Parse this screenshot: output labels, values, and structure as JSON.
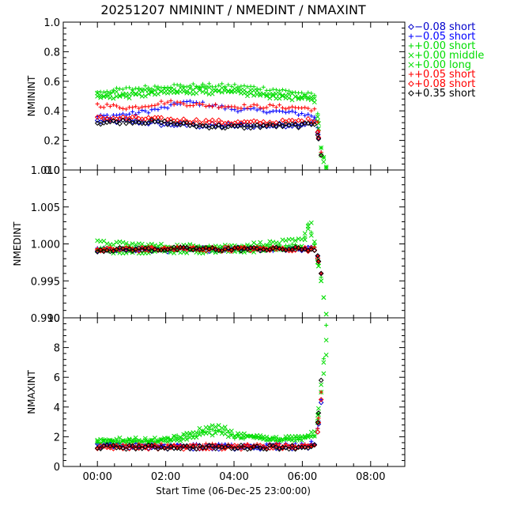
{
  "chart_data": {
    "type": "scatter",
    "title": "20251207 NMININT / NMEDINT / NMAXINT",
    "xlabel": "Start Time (06-Dec-25 23:00:00)",
    "x_ticks": [
      "00:00",
      "02:00",
      "04:00",
      "06:00",
      "08:00"
    ],
    "x_tick_hours": [
      0,
      2,
      4,
      6,
      8
    ],
    "xlim_hours": [
      -1,
      9
    ],
    "legend_position": "right",
    "legend": [
      {
        "symbol": "diamond",
        "offset": "−0.08",
        "type": "short",
        "color": "#0000cc"
      },
      {
        "symbol": "plus",
        "offset": "−0.05",
        "type": "short",
        "color": "#0000ff"
      },
      {
        "symbol": "plus",
        "offset": "+0.00",
        "type": "short",
        "color": "#00dd00"
      },
      {
        "symbol": "cross",
        "offset": "+0.00",
        "type": "middle",
        "color": "#00dd00"
      },
      {
        "symbol": "cross",
        "offset": "+0.00",
        "type": "long",
        "color": "#00dd00"
      },
      {
        "symbol": "plus",
        "offset": "+0.05",
        "type": "short",
        "color": "#ff0000"
      },
      {
        "symbol": "diamond",
        "offset": "+0.08",
        "type": "short",
        "color": "#ff0000"
      },
      {
        "symbol": "diamond",
        "offset": "+0.35",
        "type": "short",
        "color": "#000000"
      }
    ],
    "panels": [
      {
        "ylabel": "NMININT",
        "ylim": [
          0.0,
          1.0
        ],
        "y_ticks": [
          "0.0",
          "0.2",
          "0.4",
          "0.6",
          "0.8",
          "1.0"
        ],
        "y_tick_values": [
          0.0,
          0.2,
          0.4,
          0.6,
          0.8,
          1.0
        ],
        "series": [
          {
            "legend_index": 0,
            "x": [
              0.0,
              1.0,
              2.0,
              3.0,
              4.0,
              5.0,
              6.0,
              6.4,
              6.55
            ],
            "y": [
              0.33,
              0.33,
              0.31,
              0.3,
              0.3,
              0.3,
              0.31,
              0.33,
              0.1
            ]
          },
          {
            "legend_index": 1,
            "x": [
              0.0,
              1.0,
              2.0,
              2.5,
              3.0,
              4.0,
              5.0,
              6.0,
              6.4,
              6.55
            ],
            "y": [
              0.36,
              0.38,
              0.42,
              0.46,
              0.45,
              0.41,
              0.4,
              0.38,
              0.36,
              0.12
            ]
          },
          {
            "legend_index": 2,
            "x": [
              0.0,
              1.0,
              2.0,
              3.0,
              4.0,
              5.0,
              6.0,
              6.4,
              6.55,
              6.7
            ],
            "y": [
              0.53,
              0.55,
              0.57,
              0.57,
              0.57,
              0.55,
              0.52,
              0.5,
              0.15,
              0.02
            ]
          },
          {
            "legend_index": 3,
            "x": [
              0.0,
              1.0,
              2.0,
              3.0,
              4.0,
              5.0,
              6.0,
              6.4,
              6.55,
              6.7
            ],
            "y": [
              0.51,
              0.52,
              0.54,
              0.55,
              0.54,
              0.52,
              0.5,
              0.48,
              0.15,
              0.02
            ]
          },
          {
            "legend_index": 4,
            "x": [
              0.0,
              1.0,
              2.0,
              3.0,
              4.0,
              5.0,
              6.0,
              6.4,
              6.55,
              6.7
            ],
            "y": [
              0.49,
              0.5,
              0.52,
              0.53,
              0.52,
              0.5,
              0.48,
              0.46,
              0.1,
              0.01
            ]
          },
          {
            "legend_index": 5,
            "x": [
              0.0,
              1.0,
              2.0,
              3.0,
              4.0,
              5.0,
              6.0,
              6.4,
              6.55
            ],
            "y": [
              0.44,
              0.42,
              0.46,
              0.44,
              0.43,
              0.43,
              0.42,
              0.41,
              0.12
            ]
          },
          {
            "legend_index": 6,
            "x": [
              0.0,
              1.0,
              2.0,
              3.0,
              4.0,
              5.0,
              6.0,
              6.4,
              6.55
            ],
            "y": [
              0.35,
              0.35,
              0.34,
              0.33,
              0.32,
              0.32,
              0.33,
              0.34,
              0.1
            ]
          },
          {
            "legend_index": 7,
            "x": [
              0.0,
              1.0,
              2.0,
              3.0,
              4.0,
              5.0,
              6.0,
              6.4,
              6.55
            ],
            "y": [
              0.32,
              0.33,
              0.32,
              0.3,
              0.29,
              0.3,
              0.3,
              0.32,
              0.1
            ]
          }
        ]
      },
      {
        "ylabel": "NMEDINT",
        "ylim": [
          0.99,
          1.01
        ],
        "y_ticks": [
          "0.990",
          "0.995",
          "1.000",
          "1.005",
          "1.010"
        ],
        "y_tick_values": [
          0.99,
          0.995,
          1.0,
          1.005,
          1.01
        ],
        "series": [
          {
            "legend_index": 0,
            "x": [
              0.0,
              2.0,
              4.0,
              6.0,
              6.4,
              6.55
            ],
            "y": [
              0.9992,
              0.9992,
              0.9993,
              0.9993,
              0.9993,
              0.996
            ]
          },
          {
            "legend_index": 1,
            "x": [
              0.0,
              2.0,
              4.0,
              6.0,
              6.4,
              6.55
            ],
            "y": [
              0.9993,
              0.9993,
              0.9993,
              0.9993,
              0.9993,
              0.996
            ]
          },
          {
            "legend_index": 2,
            "x": [
              0.0,
              2.0,
              4.0,
              6.0,
              6.2,
              6.4,
              6.55
            ],
            "y": [
              0.9995,
              0.9995,
              0.9995,
              0.9998,
              1.003,
              0.999,
              0.9955
            ]
          },
          {
            "legend_index": 3,
            "x": [
              0.0,
              2.0,
              4.0,
              6.0,
              6.25,
              6.4,
              6.55,
              6.7
            ],
            "y": [
              0.999,
              0.999,
              0.999,
              0.9995,
              1.0035,
              0.999,
              0.995,
              0.9905
            ]
          },
          {
            "legend_index": 4,
            "x": [
              0.0,
              2.0,
              4.0,
              6.0,
              6.2,
              6.4,
              6.55,
              6.7
            ],
            "y": [
              1.0002,
              0.9997,
              0.9997,
              1.0005,
              1.0025,
              0.999,
              0.995,
              0.9905
            ]
          },
          {
            "legend_index": 5,
            "x": [
              0.0,
              2.0,
              4.0,
              6.0,
              6.4,
              6.55
            ],
            "y": [
              0.9993,
              0.9994,
              0.9994,
              0.9994,
              0.9993,
              0.996
            ]
          },
          {
            "legend_index": 6,
            "x": [
              0.0,
              2.0,
              4.0,
              6.0,
              6.4,
              6.55
            ],
            "y": [
              0.9992,
              0.9993,
              0.9993,
              0.9993,
              0.9992,
              0.996
            ]
          },
          {
            "legend_index": 7,
            "x": [
              0.0,
              2.0,
              4.0,
              6.0,
              6.4,
              6.55
            ],
            "y": [
              0.9992,
              0.9993,
              0.9993,
              0.9993,
              0.9993,
              0.996
            ]
          }
        ]
      },
      {
        "ylabel": "NMAXINT",
        "ylim": [
          0,
          10
        ],
        "y_ticks": [
          "0",
          "2",
          "4",
          "6",
          "8",
          "10"
        ],
        "y_tick_values": [
          0,
          2,
          4,
          6,
          8,
          10
        ],
        "series": [
          {
            "legend_index": 0,
            "x": [
              0.0,
              2.0,
              4.0,
              6.0,
              6.4,
              6.55
            ],
            "y": [
              1.4,
              1.3,
              1.3,
              1.3,
              1.4,
              4.3
            ]
          },
          {
            "legend_index": 1,
            "x": [
              0.0,
              2.0,
              4.0,
              6.0,
              6.4,
              6.55
            ],
            "y": [
              1.5,
              1.4,
              1.4,
              1.5,
              1.6,
              4.5
            ]
          },
          {
            "legend_index": 2,
            "x": [
              0.0,
              2.0,
              3.6,
              4.0,
              5.0,
              6.0,
              6.4,
              6.55,
              6.7
            ],
            "y": [
              1.7,
              1.8,
              2.5,
              2.0,
              1.8,
              1.9,
              2.2,
              5.0,
              9.5
            ]
          },
          {
            "legend_index": 3,
            "x": [
              0.0,
              2.0,
              3.6,
              4.0,
              5.0,
              6.0,
              6.4,
              6.55,
              6.7
            ],
            "y": [
              1.8,
              1.8,
              2.8,
              2.2,
              1.9,
              2.0,
              2.3,
              5.5,
              8.5
            ]
          },
          {
            "legend_index": 4,
            "x": [
              0.0,
              2.0,
              3.6,
              4.0,
              5.0,
              6.0,
              6.4,
              6.55,
              6.7
            ],
            "y": [
              1.6,
              1.7,
              2.3,
              2.0,
              1.8,
              1.8,
              2.0,
              5.0,
              7.5
            ]
          },
          {
            "legend_index": 5,
            "x": [
              0.0,
              2.0,
              4.0,
              6.0,
              6.4,
              6.55
            ],
            "y": [
              1.4,
              1.4,
              1.4,
              1.4,
              1.5,
              5.0
            ]
          },
          {
            "legend_index": 6,
            "x": [
              0.0,
              2.0,
              4.0,
              6.0,
              6.4,
              6.55
            ],
            "y": [
              1.3,
              1.3,
              1.3,
              1.3,
              1.4,
              4.5
            ]
          },
          {
            "legend_index": 7,
            "x": [
              0.0,
              2.0,
              4.0,
              6.0,
              6.4,
              6.55
            ],
            "y": [
              1.3,
              1.3,
              1.3,
              1.3,
              1.4,
              5.8
            ]
          }
        ]
      }
    ]
  }
}
